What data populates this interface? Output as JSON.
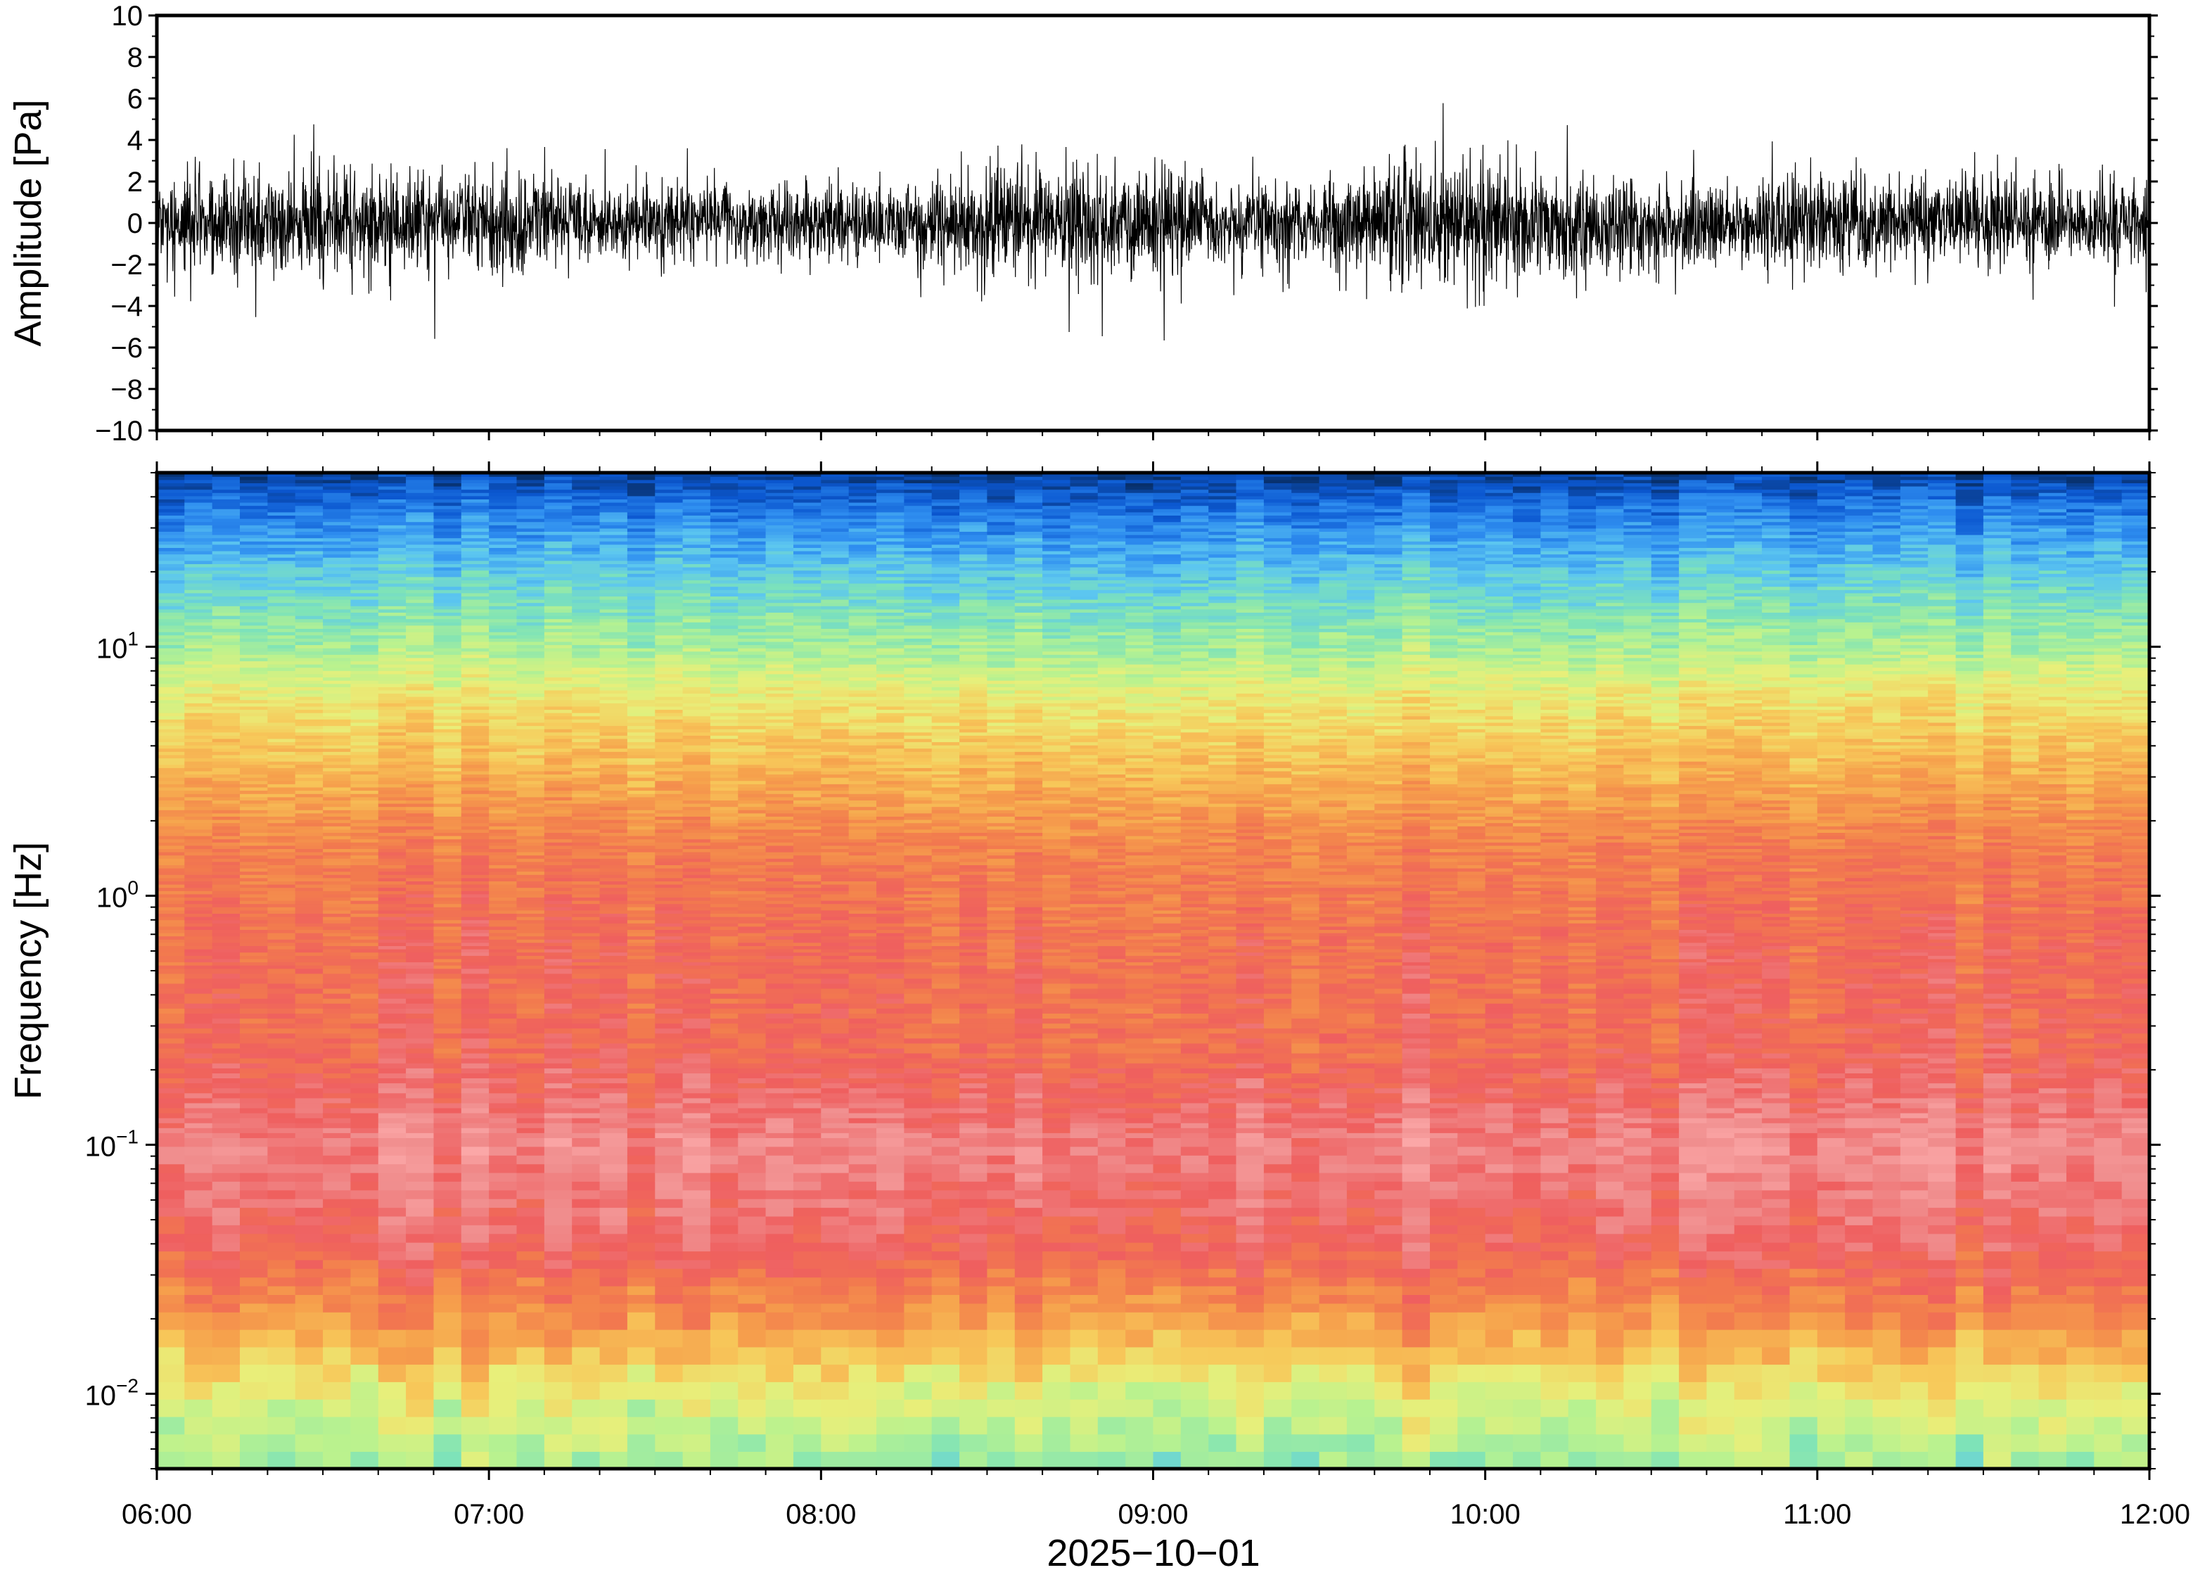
{
  "chart_data": [
    {
      "type": "line",
      "panel": "waveform",
      "ylabel": "Amplitude [Pa]",
      "ylim": [
        -10,
        10
      ],
      "yticks": [
        10,
        8,
        6,
        4,
        2,
        0,
        -2,
        -4,
        -6,
        -8,
        -10
      ],
      "ytick_labels": [
        "10",
        "8",
        "6",
        "4",
        "2",
        "0",
        "−2",
        "−4",
        "−6",
        "−8",
        "−10"
      ],
      "xlim": [
        "06:00",
        "12:00"
      ],
      "envelope": {
        "x_hours": [
          6.0,
          6.25,
          6.5,
          6.75,
          7.0,
          7.25,
          7.5,
          7.75,
          8.0,
          8.25,
          8.5,
          8.75,
          9.0,
          9.25,
          9.5,
          9.75,
          10.0,
          10.25,
          10.5,
          10.75,
          11.0,
          11.25,
          11.5,
          11.75,
          12.0
        ],
        "peak_abs_pa": [
          3.5,
          5.5,
          6.2,
          6.0,
          5.8,
          4.2,
          4.5,
          4.0,
          4.0,
          3.8,
          5.2,
          5.8,
          6.0,
          3.5,
          3.5,
          5.8,
          6.8,
          5.0,
          4.0,
          3.2,
          4.8,
          4.0,
          4.5,
          4.0,
          4.2
        ],
        "typical_abs_pa": [
          2.0,
          2.2,
          2.4,
          2.2,
          2.3,
          1.8,
          1.8,
          1.7,
          1.7,
          1.6,
          2.4,
          2.4,
          2.2,
          1.7,
          1.6,
          2.6,
          2.7,
          2.3,
          2.0,
          1.8,
          2.2,
          1.9,
          2.0,
          1.8,
          2.0
        ]
      }
    },
    {
      "type": "heatmap",
      "panel": "spectrogram",
      "ylabel": "Frequency [Hz]",
      "yscale": "log",
      "ylim": [
        0.005,
        50
      ],
      "ytick_base": "10",
      "ytick_exponents": [
        "1",
        "0",
        "−1",
        "−2"
      ],
      "xlim": [
        "06:00",
        "12:00"
      ],
      "xticks": [
        "06:00",
        "07:00",
        "08:00",
        "09:00",
        "10:00",
        "11:00",
        "12:00"
      ],
      "xlabel": "2025−10−01",
      "colormap": [
        "#08306b",
        "#0b57d0",
        "#2f8ef0",
        "#5cc6f0",
        "#7ee3b8",
        "#b9f28f",
        "#e8ef7a",
        "#f7c95a",
        "#f6a04c",
        "#f27a4e",
        "#ef5f5f",
        "#f08d8d",
        "#fba7a7"
      ]
    }
  ]
}
